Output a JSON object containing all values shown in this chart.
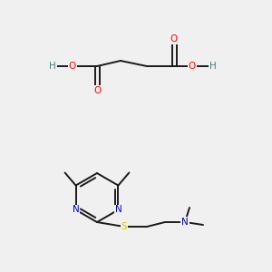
{
  "bg_color": "#f0f0f0",
  "atom_colors": {
    "C": "#000000",
    "O": "#ff0000",
    "N": "#0000cc",
    "S": "#cccc00",
    "H": "#4a8080"
  },
  "bond_color": "#1a1a1a",
  "font_size": 7.5,
  "figsize": [
    3.0,
    3.0
  ],
  "dpi": 100
}
